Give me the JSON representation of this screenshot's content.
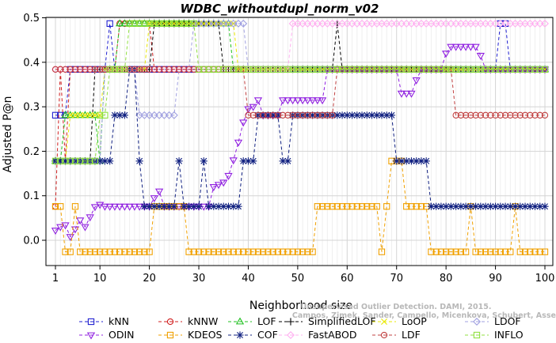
{
  "chart_data": {
    "type": "line",
    "title": "WDBC_withoutdupl_norm_v02",
    "xlabel": "Neighborhood size",
    "ylabel": "Adjusted P@n",
    "xlim": [
      1,
      100
    ],
    "ylim": [
      -0.05,
      0.5
    ],
    "xticks": [
      1,
      10,
      20,
      30,
      40,
      50,
      60,
      70,
      80,
      90,
      100
    ],
    "yticks": [
      0.0,
      0.1,
      0.2,
      0.3,
      0.4,
      0.5
    ],
    "ytick_labels": [
      "0.0",
      "0.1",
      "0.2",
      "0.3",
      "0.4",
      "0.5"
    ],
    "grid": true,
    "legend_position": "bottom",
    "watermark": [
      "Campos, Zimek, Sander, Campello, Micenkova, Schubert, Assent, Houle",
      "Unsupervised Outlier Detection. DAMI, 2015."
    ],
    "series": [
      {
        "name": "kNN",
        "color": "#1f1fd0",
        "marker": "square",
        "segments": [
          [
            1,
            0.281
          ],
          [
            3,
            0.281
          ],
          [
            4,
            0.384
          ],
          [
            11,
            0.384
          ],
          [
            12,
            0.487
          ],
          [
            13,
            0.384
          ],
          [
            90,
            0.384
          ],
          [
            91,
            0.487
          ],
          [
            92,
            0.487
          ],
          [
            93,
            0.384
          ],
          [
            100,
            0.384
          ]
        ]
      },
      {
        "name": "kNNW",
        "color": "#d02020",
        "marker": "circle",
        "segments": [
          [
            1,
            0.076
          ],
          [
            2,
            0.384
          ],
          [
            3,
            0.178
          ],
          [
            4,
            0.384
          ],
          [
            13,
            0.384
          ],
          [
            14,
            0.487
          ],
          [
            20,
            0.487
          ],
          [
            21,
            0.384
          ],
          [
            100,
            0.384
          ]
        ]
      },
      {
        "name": "LOF",
        "color": "#20c020",
        "marker": "triangle",
        "segments": [
          [
            1,
            0.178
          ],
          [
            2,
            0.178
          ],
          [
            3,
            0.281
          ],
          [
            9,
            0.281
          ],
          [
            10,
            0.178
          ],
          [
            11,
            0.384
          ],
          [
            13,
            0.384
          ],
          [
            14,
            0.487
          ],
          [
            36,
            0.487
          ],
          [
            37,
            0.384
          ],
          [
            100,
            0.384
          ]
        ]
      },
      {
        "name": "SimplifiedLOF",
        "color": "#000000",
        "marker": "plus",
        "segments": [
          [
            1,
            0.178
          ],
          [
            8,
            0.178
          ],
          [
            9,
            0.384
          ],
          [
            20,
            0.384
          ],
          [
            21,
            0.487
          ],
          [
            34,
            0.487
          ],
          [
            35,
            0.384
          ],
          [
            57,
            0.384
          ],
          [
            58,
            0.487
          ],
          [
            59,
            0.384
          ],
          [
            100,
            0.384
          ]
        ]
      },
      {
        "name": "LoOP",
        "color": "#e8e800",
        "marker": "x",
        "segments": [
          [
            1,
            0.178
          ],
          [
            3,
            0.178
          ],
          [
            4,
            0.281
          ],
          [
            10,
            0.281
          ],
          [
            11,
            0.384
          ],
          [
            19,
            0.384
          ],
          [
            20,
            0.487
          ],
          [
            37,
            0.487
          ],
          [
            38,
            0.384
          ],
          [
            100,
            0.384
          ]
        ]
      },
      {
        "name": "LDOF",
        "color": "#a0a0e0",
        "marker": "diamond",
        "segments": [
          [
            1,
            0.178
          ],
          [
            10,
            0.178
          ],
          [
            11,
            0.384
          ],
          [
            17,
            0.384
          ],
          [
            18,
            0.281
          ],
          [
            25,
            0.281
          ],
          [
            26,
            0.384
          ],
          [
            28,
            0.384
          ],
          [
            29,
            0.487
          ],
          [
            39,
            0.487
          ],
          [
            40,
            0.384
          ],
          [
            100,
            0.384
          ]
        ]
      },
      {
        "name": "ODIN",
        "color": "#9020e0",
        "marker": "triangle-down",
        "segments": [
          [
            1,
            0.022
          ],
          [
            2,
            0.03
          ],
          [
            3,
            0.034
          ],
          [
            4,
            0.008
          ],
          [
            5,
            0.025
          ],
          [
            6,
            0.045
          ],
          [
            7,
            0.03
          ],
          [
            8,
            0.052
          ],
          [
            9,
            0.075
          ],
          [
            10,
            0.08
          ],
          [
            11,
            0.076
          ],
          [
            20,
            0.076
          ],
          [
            21,
            0.095
          ],
          [
            22,
            0.11
          ],
          [
            23,
            0.076
          ],
          [
            32,
            0.076
          ],
          [
            33,
            0.12
          ],
          [
            34,
            0.125
          ],
          [
            35,
            0.13
          ],
          [
            36,
            0.145
          ],
          [
            37,
            0.18
          ],
          [
            38,
            0.22
          ],
          [
            39,
            0.265
          ],
          [
            40,
            0.295
          ],
          [
            41,
            0.3
          ],
          [
            42,
            0.315
          ],
          [
            43,
            0.281
          ],
          [
            46,
            0.281
          ],
          [
            47,
            0.315
          ],
          [
            55,
            0.315
          ],
          [
            56,
            0.384
          ],
          [
            70,
            0.384
          ],
          [
            71,
            0.33
          ],
          [
            73,
            0.33
          ],
          [
            74,
            0.36
          ],
          [
            75,
            0.384
          ],
          [
            79,
            0.384
          ],
          [
            80,
            0.42
          ],
          [
            81,
            0.435
          ],
          [
            86,
            0.435
          ],
          [
            87,
            0.415
          ],
          [
            88,
            0.384
          ],
          [
            100,
            0.384
          ]
        ]
      },
      {
        "name": "KDEOS",
        "color": "#f0a000",
        "marker": "square",
        "segments": [
          [
            1,
            0.076
          ],
          [
            2,
            0.076
          ],
          [
            3,
            -0.026
          ],
          [
            4,
            -0.026
          ],
          [
            5,
            0.076
          ],
          [
            6,
            -0.026
          ],
          [
            20,
            -0.026
          ],
          [
            21,
            0.076
          ],
          [
            27,
            0.076
          ],
          [
            28,
            -0.026
          ],
          [
            53,
            -0.026
          ],
          [
            54,
            0.076
          ],
          [
            66,
            0.076
          ],
          [
            67,
            -0.026
          ],
          [
            68,
            0.076
          ],
          [
            69,
            0.178
          ],
          [
            71,
            0.178
          ],
          [
            72,
            0.076
          ],
          [
            76,
            0.076
          ],
          [
            77,
            -0.026
          ],
          [
            84,
            -0.026
          ],
          [
            85,
            0.076
          ],
          [
            86,
            -0.026
          ],
          [
            93,
            -0.026
          ],
          [
            94,
            0.076
          ],
          [
            95,
            -0.026
          ],
          [
            100,
            -0.026
          ]
        ]
      },
      {
        "name": "COF",
        "color": "#102080",
        "marker": "star",
        "segments": [
          [
            1,
            0.178
          ],
          [
            12,
            0.178
          ],
          [
            13,
            0.281
          ],
          [
            15,
            0.281
          ],
          [
            16,
            0.384
          ],
          [
            17,
            0.384
          ],
          [
            18,
            0.178
          ],
          [
            19,
            0.076
          ],
          [
            25,
            0.076
          ],
          [
            26,
            0.178
          ],
          [
            27,
            0.076
          ],
          [
            30,
            0.076
          ],
          [
            31,
            0.178
          ],
          [
            32,
            0.076
          ],
          [
            38,
            0.076
          ],
          [
            39,
            0.178
          ],
          [
            41,
            0.178
          ],
          [
            42,
            0.281
          ],
          [
            46,
            0.281
          ],
          [
            47,
            0.178
          ],
          [
            48,
            0.178
          ],
          [
            49,
            0.281
          ],
          [
            69,
            0.281
          ],
          [
            70,
            0.178
          ],
          [
            76,
            0.178
          ],
          [
            77,
            0.076
          ],
          [
            100,
            0.076
          ]
        ]
      },
      {
        "name": "FastABOD",
        "color": "#ffb0f0",
        "marker": "diamond",
        "segments": [
          [
            1,
            0.384
          ],
          [
            48,
            0.384
          ],
          [
            49,
            0.487
          ],
          [
            100,
            0.487
          ]
        ]
      },
      {
        "name": "LDF",
        "color": "#c04040",
        "marker": "circle",
        "segments": [
          [
            1,
            0.384
          ],
          [
            39,
            0.384
          ],
          [
            40,
            0.281
          ],
          [
            57,
            0.281
          ],
          [
            58,
            0.384
          ],
          [
            81,
            0.384
          ],
          [
            82,
            0.281
          ],
          [
            100,
            0.281
          ]
        ]
      },
      {
        "name": "INFLO",
        "color": "#90e040",
        "marker": "square",
        "segments": [
          [
            1,
            0.178
          ],
          [
            9,
            0.178
          ],
          [
            10,
            0.281
          ],
          [
            11,
            0.281
          ],
          [
            12,
            0.384
          ],
          [
            15,
            0.384
          ],
          [
            16,
            0.487
          ],
          [
            29,
            0.487
          ],
          [
            30,
            0.384
          ],
          [
            100,
            0.384
          ]
        ]
      }
    ]
  }
}
